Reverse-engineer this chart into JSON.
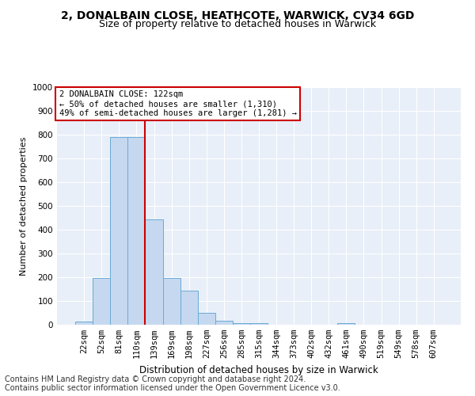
{
  "title1": "2, DONALBAIN CLOSE, HEATHCOTE, WARWICK, CV34 6GD",
  "title2": "Size of property relative to detached houses in Warwick",
  "xlabel": "Distribution of detached houses by size in Warwick",
  "ylabel": "Number of detached properties",
  "categories": [
    "22sqm",
    "52sqm",
    "81sqm",
    "110sqm",
    "139sqm",
    "169sqm",
    "198sqm",
    "227sqm",
    "256sqm",
    "285sqm",
    "315sqm",
    "344sqm",
    "373sqm",
    "402sqm",
    "432sqm",
    "461sqm",
    "490sqm",
    "519sqm",
    "549sqm",
    "578sqm",
    "607sqm"
  ],
  "values": [
    15,
    197,
    790,
    790,
    443,
    197,
    143,
    49,
    16,
    8,
    8,
    0,
    0,
    0,
    0,
    8,
    0,
    0,
    0,
    0,
    0
  ],
  "bar_color": "#c5d8f0",
  "bar_edge_color": "#6aaad4",
  "vline_x_index": 3,
  "vline_color": "#cc0000",
  "annotation_text": "2 DONALBAIN CLOSE: 122sqm\n← 50% of detached houses are smaller (1,310)\n49% of semi-detached houses are larger (1,281) →",
  "annotation_box_color": "#ffffff",
  "annotation_box_edge_color": "#cc0000",
  "ylim": [
    0,
    1000
  ],
  "yticks": [
    0,
    100,
    200,
    300,
    400,
    500,
    600,
    700,
    800,
    900,
    1000
  ],
  "footer_line1": "Contains HM Land Registry data © Crown copyright and database right 2024.",
  "footer_line2": "Contains public sector information licensed under the Open Government Licence v3.0.",
  "background_color": "#e8eff8",
  "grid_color": "#ffffff",
  "title1_fontsize": 10,
  "title2_fontsize": 9,
  "xlabel_fontsize": 8.5,
  "ylabel_fontsize": 8,
  "annotation_fontsize": 7.5,
  "footer_fontsize": 7,
  "tick_fontsize": 7.5
}
